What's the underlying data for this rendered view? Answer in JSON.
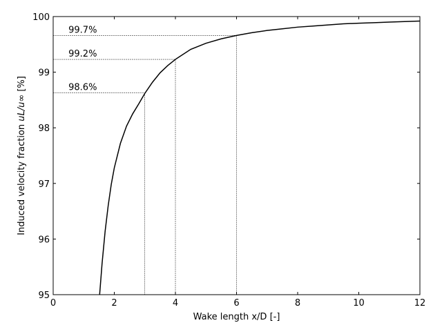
{
  "chart_data": {
    "type": "line",
    "title": "",
    "xlabel": "Wake length x/D [-]",
    "ylabel_main": "Induced velocity fraction ",
    "ylabel_math": "uL/u∞",
    "ylabel_unit": " [%]",
    "xlim": [
      0,
      12
    ],
    "ylim": [
      95,
      100
    ],
    "xticks": [
      0,
      2,
      4,
      6,
      8,
      10,
      12
    ],
    "yticks": [
      95,
      96,
      97,
      98,
      99,
      100
    ],
    "grid": false,
    "series": [
      {
        "x": [
          1.52,
          1.6,
          1.7,
          1.8,
          1.9,
          2.0,
          2.2,
          2.4,
          2.6,
          2.8,
          3.0,
          3.25,
          3.5,
          3.75,
          4.0,
          4.5,
          5.0,
          5.5,
          6.0,
          6.5,
          7.0,
          7.5,
          8.0,
          8.5,
          9.0,
          9.5,
          10.0,
          10.5,
          11.0,
          11.5,
          12.0
        ],
        "y": [
          95.0,
          95.56,
          96.14,
          96.6,
          96.98,
          97.28,
          97.72,
          98.03,
          98.25,
          98.43,
          98.62,
          98.82,
          98.99,
          99.12,
          99.23,
          99.41,
          99.52,
          99.6,
          99.66,
          99.71,
          99.75,
          99.78,
          99.81,
          99.83,
          99.85,
          99.87,
          99.88,
          99.89,
          99.9,
          99.91,
          99.92
        ],
        "color": "#000000"
      }
    ],
    "annotations": [
      {
        "x": 6,
        "y": 99.66,
        "label": "99.7%"
      },
      {
        "x": 4,
        "y": 99.23,
        "label": "99.2%"
      },
      {
        "x": 3,
        "y": 98.63,
        "label": "98.6%"
      }
    ]
  }
}
